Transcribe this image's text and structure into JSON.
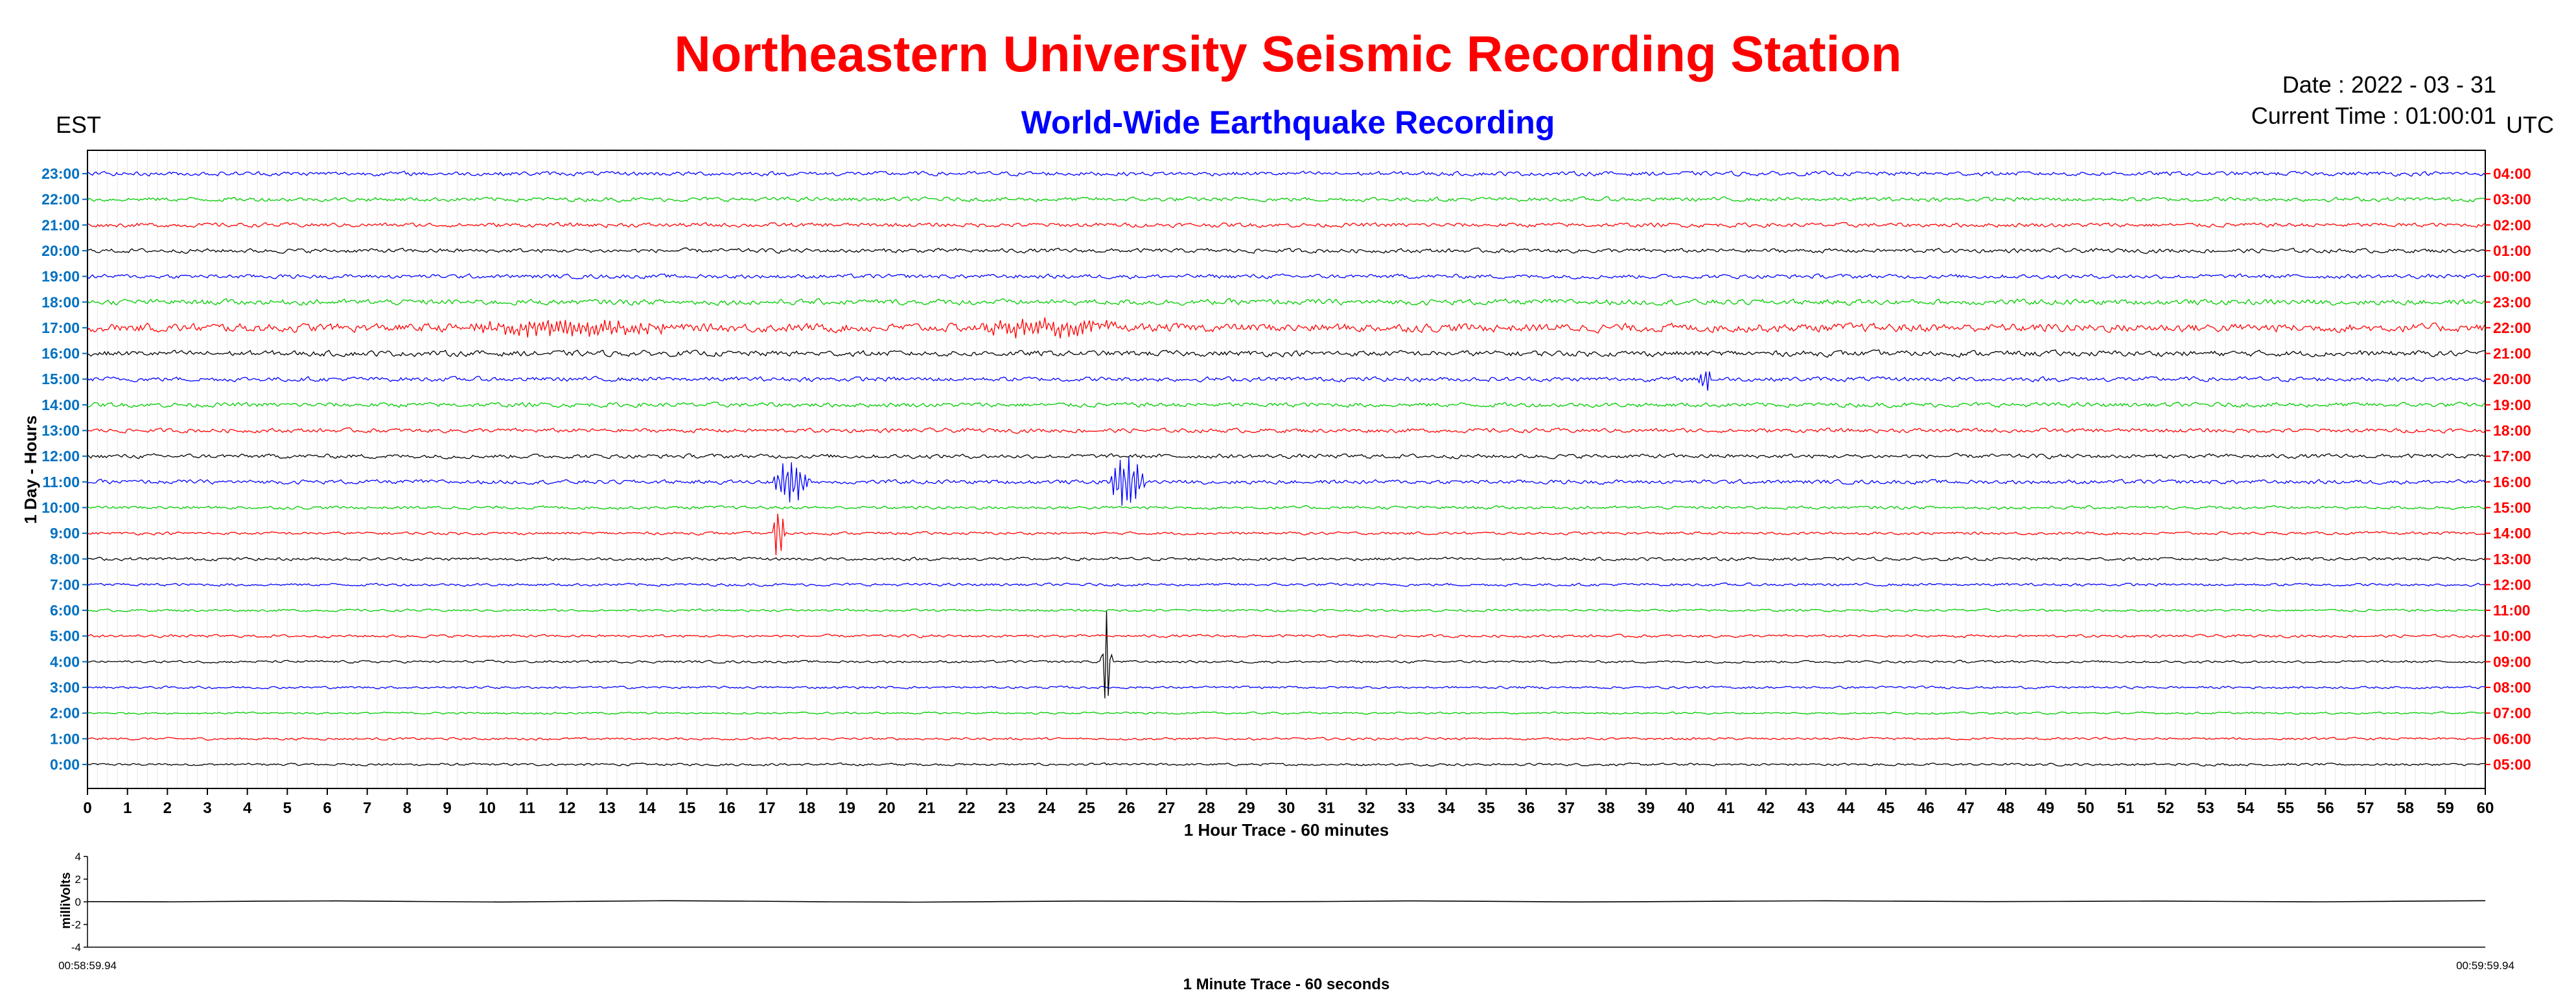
{
  "header": {
    "title": "Northeastern University Seismic Recording Station",
    "subtitle": "World-Wide Earthquake Recording",
    "date_text": "Date : 2022 - 03 - 31",
    "time_text": "Current Time : 01:00:01",
    "left_zone": "EST",
    "right_zone": "UTC"
  },
  "colors": {
    "title": "#ff0000",
    "subtitle": "#0000ff",
    "left_ticks": "#0070c0",
    "right_ticks": "#ff0000",
    "trace_cycle": [
      "#000000",
      "#ff0000",
      "#00cc00",
      "#0000ff"
    ]
  },
  "chart_data": [
    {
      "type": "line",
      "name": "helicorder-1-hour-trace",
      "xlabel": "1 Hour Trace - 60 minutes",
      "ylabel": "1 Day - Hours",
      "xlim": [
        0,
        60
      ],
      "x_ticks": [
        "0",
        "1",
        "2",
        "3",
        "4",
        "5",
        "6",
        "7",
        "8",
        "9",
        "10",
        "11",
        "12",
        "13",
        "14",
        "15",
        "16",
        "17",
        "18",
        "19",
        "20",
        "21",
        "22",
        "23",
        "24",
        "25",
        "26",
        "27",
        "28",
        "29",
        "30",
        "31",
        "32",
        "33",
        "34",
        "35",
        "36",
        "37",
        "38",
        "39",
        "40",
        "41",
        "42",
        "43",
        "44",
        "45",
        "46",
        "47",
        "48",
        "49",
        "50",
        "51",
        "52",
        "53",
        "54",
        "55",
        "56",
        "57",
        "58",
        "59",
        "60"
      ],
      "left_hour_labels": [
        "0:00",
        "1:00",
        "2:00",
        "3:00",
        "4:00",
        "5:00",
        "6:00",
        "7:00",
        "8:00",
        "9:00",
        "10:00",
        "11:00",
        "12:00",
        "13:00",
        "14:00",
        "15:00",
        "16:00",
        "17:00",
        "18:00",
        "19:00",
        "20:00",
        "21:00",
        "22:00",
        "23:00"
      ],
      "right_hour_labels": [
        "05:00",
        "06:00",
        "07:00",
        "08:00",
        "09:00",
        "10:00",
        "11:00",
        "12:00",
        "13:00",
        "14:00",
        "15:00",
        "16:00",
        "17:00",
        "18:00",
        "19:00",
        "20:00",
        "21:00",
        "22:00",
        "23:00",
        "00:00",
        "01:00",
        "02:00",
        "03:00",
        "04:00"
      ],
      "grid": true,
      "trace_amplitudes": [
        0.35,
        0.35,
        0.3,
        0.35,
        0.35,
        0.4,
        0.35,
        0.4,
        0.45,
        0.4,
        0.45,
        0.6,
        0.6,
        0.6,
        0.65,
        0.65,
        0.8,
        1.2,
        0.8,
        0.6,
        0.6,
        0.6,
        0.6,
        0.6
      ],
      "events": [
        {
          "row": 11,
          "center_min": 17.6,
          "duration_min": 1.0,
          "amplitude": 4.0
        },
        {
          "row": 9,
          "center_min": 17.3,
          "duration_min": 0.3,
          "amplitude": 6.0
        },
        {
          "row": 4,
          "center_min": 25.5,
          "duration_min": 0.3,
          "amplitude": 10.0
        },
        {
          "row": 11,
          "center_min": 26.0,
          "duration_min": 1.0,
          "amplitude": 5.0
        },
        {
          "row": 17,
          "center_min": 12.0,
          "duration_min": 6.0,
          "amplitude": 1.4
        },
        {
          "row": 17,
          "center_min": 24.0,
          "duration_min": 4.0,
          "amplitude": 1.4
        },
        {
          "row": 15,
          "center_min": 40.5,
          "duration_min": 0.4,
          "amplitude": 2.2
        }
      ]
    },
    {
      "type": "line",
      "name": "1-minute-trace",
      "xlabel": "1 Minute Trace  - 60 seconds",
      "ylabel": "milliVolts",
      "ylim": [
        -4,
        4
      ],
      "y_ticks": [
        "4",
        "2",
        "0",
        "-2",
        "-4"
      ],
      "x_start_label": "00:58:59.94",
      "x_end_label": "00:59:59.94",
      "values": [
        0.02,
        0.0,
        0.05,
        0.08,
        0.03,
        -0.02,
        0.04,
        0.1,
        0.06,
        0.0,
        -0.03,
        0.02,
        0.07,
        0.05,
        0.01,
        0.03,
        0.08,
        0.04,
        -0.01,
        0.02,
        0.06,
        0.09,
        0.05,
        0.02,
        0.04,
        0.07,
        0.03,
        0.0,
        0.05,
        0.1
      ]
    }
  ]
}
